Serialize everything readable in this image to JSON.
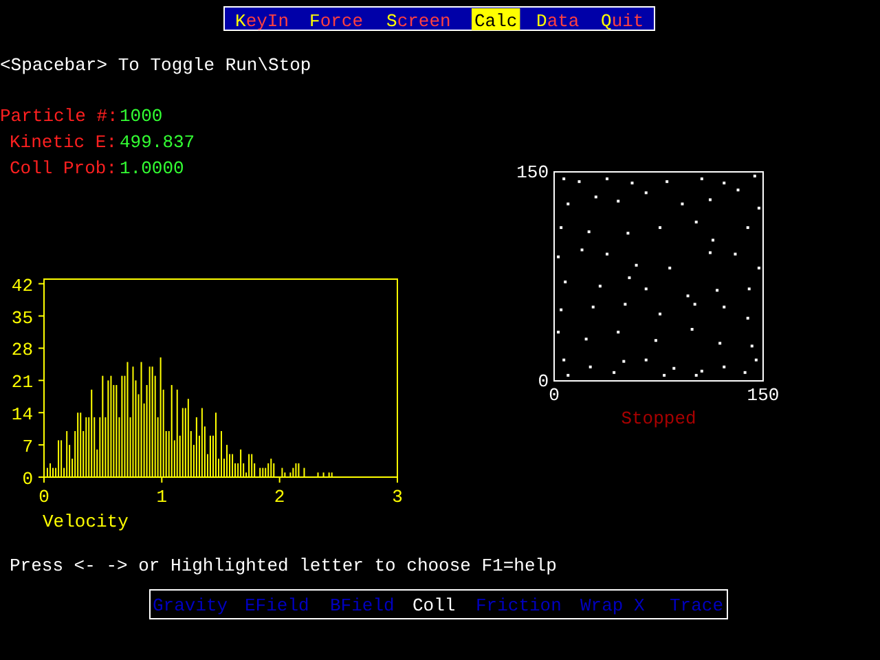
{
  "chart_data": [
    {
      "type": "other",
      "annotations": [
        "KeyIn",
        "Force",
        "Screen",
        "Calc",
        "Data",
        "Quit",
        "<Spacebar> To Toggle Run\\Stop",
        "Particle #:",
        "1000",
        "Kinetic E:",
        "499.837",
        "Coll Prob:",
        "1.0000",
        "Press <- -> or Highlighted letter to choose  F1=help",
        "Gravity",
        "EField",
        "BField",
        "Coll",
        "Friction",
        "Wrap X",
        "Trace"
      ]
    },
    {
      "type": "histogram",
      "xlabel": "Velocity",
      "color": "#ffff00",
      "bins": [
        0.023,
        0.047,
        0.07,
        0.094,
        0.117,
        0.141,
        0.164,
        0.188,
        0.211,
        0.234,
        0.258,
        0.281,
        0.305,
        0.328,
        0.352,
        0.375,
        0.398,
        0.422,
        0.445,
        0.469,
        0.492,
        0.516,
        0.539,
        0.563,
        0.586,
        0.609,
        0.633,
        0.656,
        0.68,
        0.703,
        0.727,
        0.75,
        0.773,
        0.797,
        0.82,
        0.844,
        0.867,
        0.891,
        0.914,
        0.938,
        0.961,
        0.984,
        1.008,
        1.031,
        1.055,
        1.078,
        1.102,
        1.125,
        1.148,
        1.172,
        1.195,
        1.219,
        1.242,
        1.266,
        1.289,
        1.313,
        1.336,
        1.359,
        1.383,
        1.406,
        1.43,
        1.453,
        1.477,
        1.5,
        1.523,
        1.547,
        1.57,
        1.594,
        1.617,
        1.641,
        1.664,
        1.688,
        1.711,
        1.734,
        1.758,
        1.781,
        1.805,
        1.828,
        1.852,
        1.875,
        1.898,
        1.922,
        1.945,
        1.969,
        1.992,
        2.016,
        2.039,
        2.063,
        2.086,
        2.109,
        2.133,
        2.156,
        2.18,
        2.203,
        2.227,
        2.25,
        2.273,
        2.297,
        2.32,
        2.344,
        2.367,
        2.391,
        2.414,
        2.438,
        2.461
      ],
      "values": [
        2,
        3,
        2,
        2,
        8,
        8,
        2,
        10,
        7,
        4,
        10,
        14,
        14,
        10,
        13,
        13,
        19,
        13,
        6,
        13,
        22,
        13,
        21,
        22,
        20,
        20,
        13,
        22,
        22,
        25,
        13,
        24,
        21,
        18,
        25,
        16,
        20,
        24,
        24,
        22,
        13,
        26,
        19,
        10,
        10,
        20,
        8,
        19,
        9,
        15,
        15,
        17,
        10,
        7,
        13,
        9,
        15,
        11,
        5,
        9,
        9,
        14,
        4,
        10,
        4,
        7,
        5,
        5,
        3,
        3,
        6,
        3,
        1,
        5,
        5,
        3,
        0,
        2,
        2,
        2,
        3,
        4,
        3,
        0,
        0,
        2,
        1,
        0,
        1,
        2,
        3,
        3,
        0,
        2,
        0,
        0,
        0,
        0,
        1,
        0,
        1,
        0,
        1,
        1
      ],
      "xlim": [
        0,
        3
      ],
      "xticks": [
        0,
        1,
        2,
        3
      ],
      "ylim": [
        0,
        43
      ],
      "yticks": [
        0,
        7,
        14,
        21,
        28,
        35,
        42
      ]
    },
    {
      "type": "scatter",
      "color": "#ffffff",
      "marker": "square",
      "annotations": [
        "Stopped"
      ],
      "x": [
        7,
        18,
        38,
        56,
        81,
        106,
        122,
        144,
        10,
        30,
        46,
        66,
        92,
        112,
        132,
        147,
        5,
        25,
        53,
        76,
        102,
        114,
        139,
        3,
        20,
        38,
        59,
        83,
        112,
        130,
        147,
        8,
        33,
        54,
        66,
        96,
        117,
        140,
        5,
        28,
        51,
        76,
        101,
        122,
        139,
        3,
        23,
        46,
        73,
        99,
        119,
        142,
        7,
        26,
        50,
        66,
        86,
        106,
        122,
        145,
        10,
        43,
        79,
        102,
        137
      ],
      "values": [
        145,
        143,
        145,
        142,
        143,
        145,
        142,
        147,
        127,
        132,
        129,
        135,
        127,
        130,
        137,
        124,
        110,
        107,
        106,
        110,
        114,
        101,
        110,
        89,
        94,
        91,
        83,
        81,
        92,
        91,
        81,
        71,
        68,
        74,
        66,
        61,
        65,
        66,
        51,
        53,
        55,
        48,
        55,
        53,
        45,
        35,
        30,
        35,
        29,
        37,
        27,
        25,
        15,
        10,
        14,
        15,
        9,
        7,
        10,
        15,
        4,
        6,
        4,
        4,
        6
      ],
      "xlim": [
        0,
        150
      ],
      "xticks": [
        0,
        150
      ],
      "ylim": [
        0,
        150
      ],
      "yticks": [
        0,
        150
      ]
    }
  ]
}
